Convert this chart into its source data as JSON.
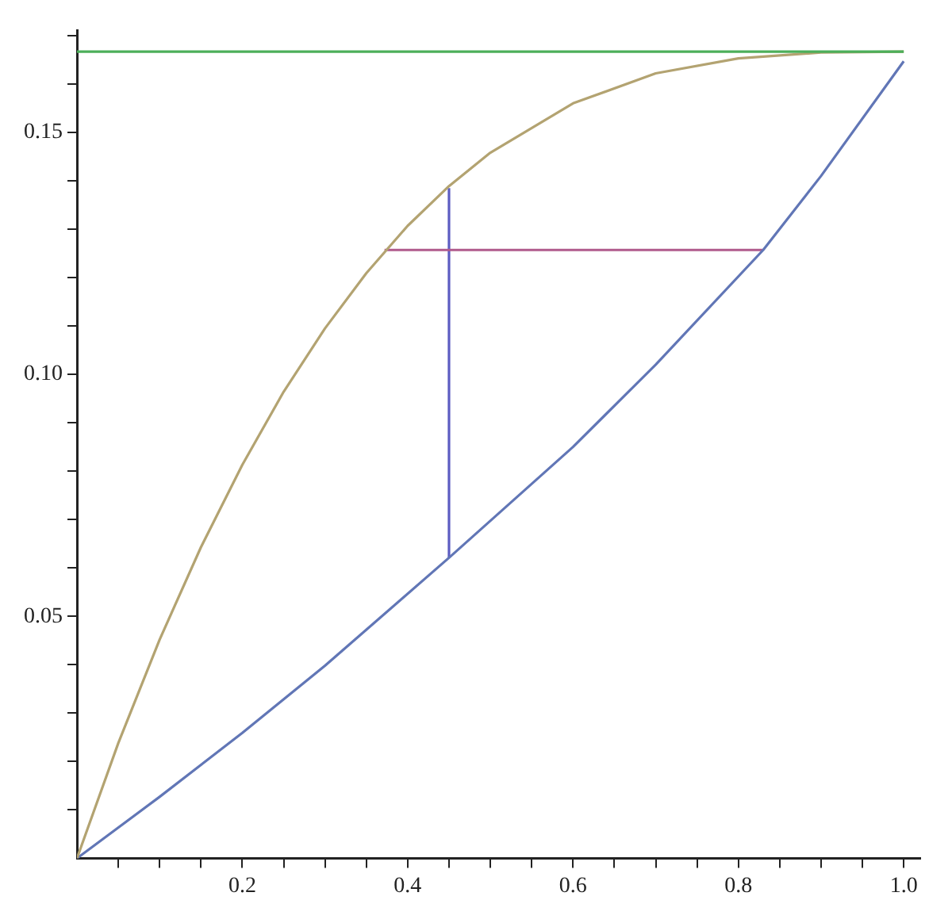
{
  "chart_data": {
    "type": "line",
    "xlim": [
      0,
      1.02
    ],
    "ylim": [
      0,
      0.171
    ],
    "xticks": [
      {
        "value": 0.05,
        "label": null
      },
      {
        "value": 0.1,
        "label": null
      },
      {
        "value": 0.15,
        "label": null
      },
      0.2,
      {
        "value": 0.25,
        "label": null
      },
      {
        "value": 0.3,
        "label": null
      },
      {
        "value": 0.35,
        "label": null
      },
      0.4,
      {
        "value": 0.45,
        "label": null
      },
      {
        "value": 0.5,
        "label": null
      },
      {
        "value": 0.55,
        "label": null
      },
      0.6,
      {
        "value": 0.65,
        "label": null
      },
      {
        "value": 0.7,
        "label": null
      },
      {
        "value": 0.75,
        "label": null
      },
      0.8,
      {
        "value": 0.85,
        "label": null
      },
      {
        "value": 0.9,
        "label": null
      },
      {
        "value": 0.95,
        "label": null
      },
      {
        "value": 1.0,
        "label": "1.0"
      }
    ],
    "yticks": [
      {
        "value": 0.01,
        "label": null
      },
      {
        "value": 0.02,
        "label": null
      },
      {
        "value": 0.03,
        "label": null
      },
      {
        "value": 0.04,
        "label": null
      },
      0.05,
      {
        "value": 0.06,
        "label": null
      },
      {
        "value": 0.07,
        "label": null
      },
      {
        "value": 0.08,
        "label": null
      },
      {
        "value": 0.09,
        "label": null
      },
      {
        "value": 0.1,
        "label": "0.10"
      },
      {
        "value": 0.11,
        "label": null
      },
      {
        "value": 0.12,
        "label": null
      },
      {
        "value": 0.13,
        "label": null
      },
      {
        "value": 0.14,
        "label": null
      },
      0.15,
      {
        "value": 0.16,
        "label": null
      },
      {
        "value": 0.17,
        "label": null
      }
    ],
    "grid": false,
    "legend": false,
    "marker": "none",
    "line_style": "solid",
    "series": [
      {
        "color": "#4caf5a",
        "x": [
          0,
          1
        ],
        "values": [
          0.1667,
          0.1667
        ]
      },
      {
        "color": "#b3a371",
        "x": [
          0,
          0.05,
          0.1,
          0.15,
          0.2,
          0.25,
          0.3,
          0.35,
          0.4,
          0.45,
          0.5,
          0.6,
          0.7,
          0.8,
          0.9,
          1
        ],
        "values": [
          0,
          0.0238,
          0.0452,
          0.0643,
          0.0813,
          0.0964,
          0.1095,
          0.1209,
          0.1307,
          0.1389,
          0.1458,
          0.156,
          0.1622,
          0.1653,
          0.1665,
          0.1667
        ]
      },
      {
        "color": "#6176b6",
        "x": [
          0,
          0.1,
          0.2,
          0.3,
          0.45,
          0.6,
          0.7,
          0.83,
          0.9,
          1
        ],
        "values": [
          0,
          0.0127,
          0.0259,
          0.0398,
          0.0621,
          0.085,
          0.102,
          0.1257,
          0.141,
          0.1647
        ]
      },
      {
        "color": "#b05a8c",
        "x": [
          0.372,
          0.829
        ],
        "values": [
          0.1257,
          0.1257
        ]
      },
      {
        "color": "#5c5cc2",
        "x": [
          0.45,
          0.45
        ],
        "values": [
          0.0621,
          0.1385
        ]
      }
    ]
  }
}
